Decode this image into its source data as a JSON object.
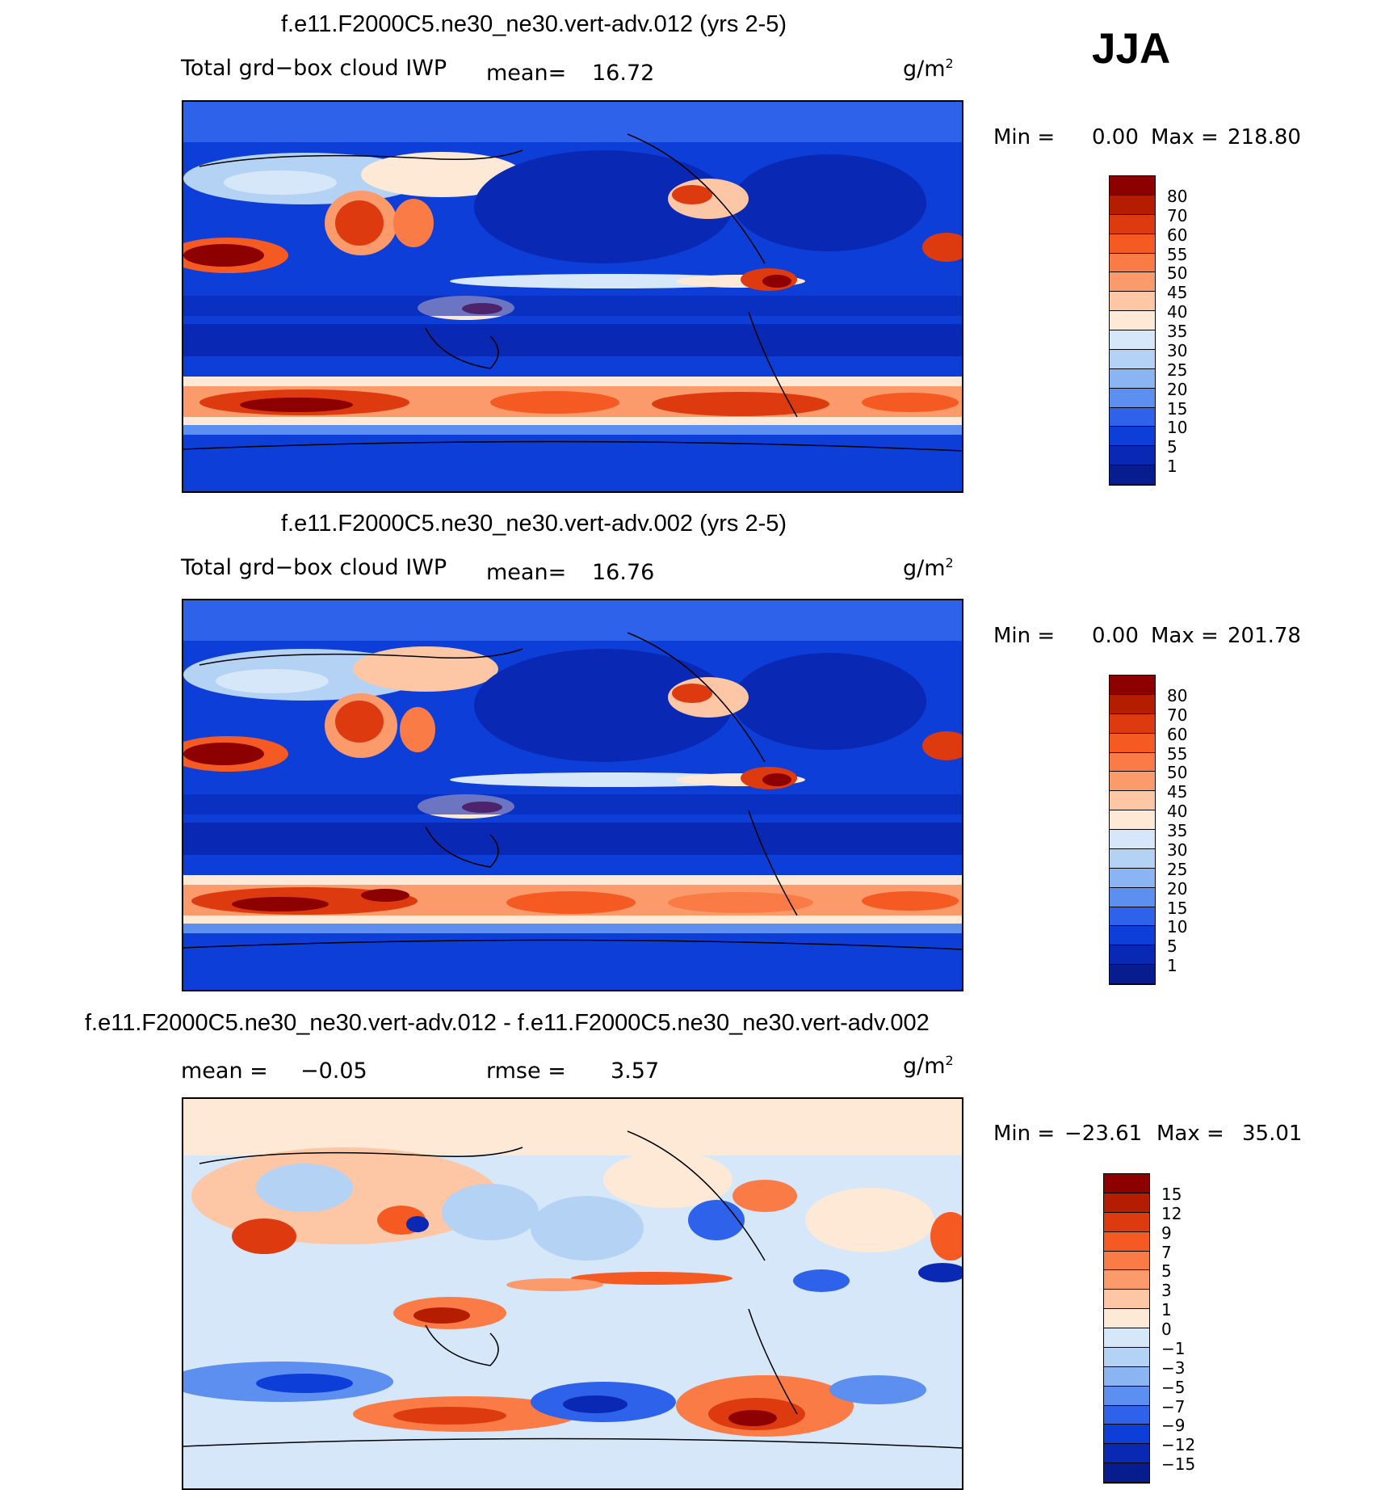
{
  "season": "JJA",
  "panels": [
    {
      "title": "f.e11.F2000C5.ne30_ne30.vert-adv.012 (yrs 2-5)",
      "variable": "Total grd−box cloud IWP",
      "mean_label": "mean=",
      "mean_value": "16.72",
      "units": "g/m",
      "units_sup": "2",
      "min_label": "Min =",
      "min_value": "0.00",
      "max_label": "Max =",
      "max_value": "218.80",
      "levels": [
        "80",
        "70",
        "60",
        "55",
        "50",
        "45",
        "40",
        "35",
        "30",
        "25",
        "20",
        "15",
        "10",
        "5",
        "1"
      ],
      "colors": [
        "#8c0000",
        "#b51d00",
        "#de3a10",
        "#f55a23",
        "#fa7b45",
        "#fb9a6a",
        "#fdc6a4",
        "#fee9d6",
        "#d5e7f8",
        "#b4d3f4",
        "#8ab5f2",
        "#5c8ff0",
        "#2f62ea",
        "#0d3ed8",
        "#0928b4",
        "#061c8f"
      ]
    },
    {
      "title": "f.e11.F2000C5.ne30_ne30.vert-adv.002 (yrs 2-5)",
      "variable": "Total grd−box cloud IWP",
      "mean_label": "mean=",
      "mean_value": "16.76",
      "units": "g/m",
      "units_sup": "2",
      "min_label": "Min =",
      "min_value": "0.00",
      "max_label": "Max =",
      "max_value": "201.78",
      "levels": [
        "80",
        "70",
        "60",
        "55",
        "50",
        "45",
        "40",
        "35",
        "30",
        "25",
        "20",
        "15",
        "10",
        "5",
        "1"
      ],
      "colors": [
        "#8c0000",
        "#b51d00",
        "#de3a10",
        "#f55a23",
        "#fa7b45",
        "#fb9a6a",
        "#fdc6a4",
        "#fee9d6",
        "#d5e7f8",
        "#b4d3f4",
        "#8ab5f2",
        "#5c8ff0",
        "#2f62ea",
        "#0d3ed8",
        "#0928b4",
        "#061c8f"
      ]
    },
    {
      "title": "f.e11.F2000C5.ne30_ne30.vert-adv.012 - f.e11.F2000C5.ne30_ne30.vert-adv.002",
      "mean_label": "mean =",
      "mean_value": "−0.05",
      "rmse_label": "rmse =",
      "rmse_value": "3.57",
      "units": "g/m",
      "units_sup": "2",
      "min_label": "Min =",
      "min_value": "−23.61",
      "max_label": "Max =",
      "max_value": "35.01",
      "levels": [
        "15",
        "12",
        "9",
        "7",
        "5",
        "3",
        "1",
        "0",
        "−1",
        "−3",
        "−5",
        "−7",
        "−9",
        "−12",
        "−15"
      ],
      "colors": [
        "#8c0000",
        "#b51d00",
        "#de3a10",
        "#f55a23",
        "#fa7b45",
        "#fb9a6a",
        "#fdc6a4",
        "#fee9d6",
        "#d5e7f8",
        "#b4d3f4",
        "#8ab5f2",
        "#5c8ff0",
        "#2f62ea",
        "#0d3ed8",
        "#0928b4",
        "#061c8f"
      ]
    }
  ]
}
